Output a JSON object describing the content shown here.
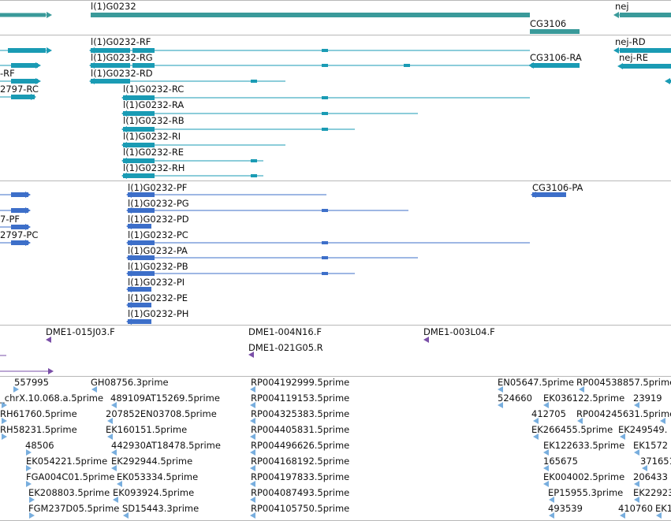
{
  "colors": {
    "gene": "#3a9a9a",
    "mrna": "#1a9bb4",
    "cds": "#3d6fc9",
    "clone": "#7a4fa8",
    "est": "#78aede"
  },
  "tracks": {
    "genes": {
      "labels": [
        "l(1)G0232",
        "nej",
        "CG3106"
      ]
    },
    "transcripts": {
      "labels": [
        "l(1)G0232-RF",
        "l(1)G0232-RG",
        "l(1)G0232-RD",
        "nej-RD",
        "nej-RE",
        "CG3106-RA",
        "-RF",
        "2797-RC",
        "l(1)G0232-RC",
        "l(1)G0232-RA",
        "l(1)G0232-RB",
        "l(1)G0232-RI",
        "l(1)G0232-RE",
        "l(1)G0232-RH"
      ]
    },
    "proteins": {
      "labels": [
        "l(1)G0232-PF",
        "l(1)G0232-PG",
        "l(1)G0232-PD",
        "l(1)G0232-PC",
        "l(1)G0232-PA",
        "l(1)G0232-PB",
        "l(1)G0232-PI",
        "l(1)G0232-PE",
        "l(1)G0232-PH",
        "CG3106-PA",
        "7-PF",
        "2797-PC"
      ]
    },
    "clones": {
      "labels": [
        "DME1-015J03.F",
        "DME1-004N16.F",
        "DME1-021G05.R",
        "DME1-003L04.F"
      ]
    },
    "ests": {
      "labels": [
        "557995",
        "GH08756.3prime",
        "RP004192999.5prime",
        "EN05647.5prime",
        "RP004538857.5prime",
        "_chrX.10.068.a.5prime",
        "489109AT15269.5prime",
        "RP004119153.5prime",
        "524660",
        "EK036122.5prime",
        "23919",
        "RH61760.5prime",
        "207852EN03708.5prime",
        "RP004325383.5prime",
        "412705",
        "RP004245631.5prime",
        "RH58231.5prime",
        "EK160151.5prime",
        "RP004405831.5prime",
        "EK266455.5prime",
        "EK249549.",
        "48506",
        "442930AT18478.5prime",
        "RP004496626.5prime",
        "EK122633.5prime",
        "EK1572",
        "EK054221.5prime",
        "EK292944.5prime",
        "RP004168192.5prime",
        "165675",
        "371651",
        "FGA004C01.5prime",
        "EK053334.5prime",
        "RP004197833.5prime",
        "EK004002.5prime",
        "206433",
        "EK208803.5prime",
        "EK093924.5prime",
        "RP004087493.5prime",
        "EP15955.3prime",
        "EK22923",
        "FGM237D05.5prime",
        "SD15443.3prime",
        "RP004105750.5prime",
        "493539",
        "410760",
        "EK1"
      ]
    }
  }
}
